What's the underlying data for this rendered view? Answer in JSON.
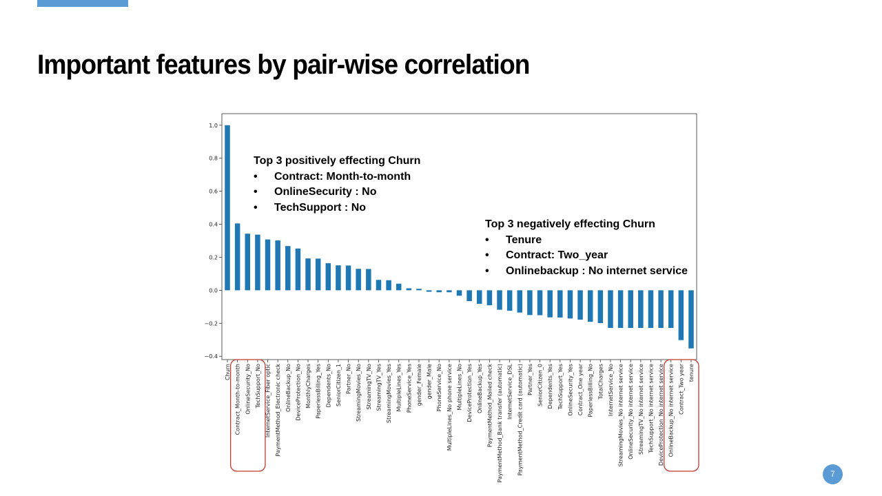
{
  "slide": {
    "title": "Important features by pair-wise correlation",
    "page_number": "7",
    "accent_color": "#5b9bd5"
  },
  "callouts": {
    "positive": {
      "heading": "Top 3 positively effecting Churn",
      "items": [
        "Contract: Month-to-month",
        "OnlineSecurity : No",
        "TechSupport : No"
      ]
    },
    "negative": {
      "heading": "Top 3 negatively effecting Churn",
      "items": [
        "Tenure",
        "Contract: Two_year",
        "Onlinebackup : No internet service"
      ]
    }
  },
  "chart_data": {
    "type": "bar",
    "title": "",
    "xlabel": "",
    "ylabel": "",
    "ylim": [
      -0.42,
      1.07
    ],
    "yticks": [
      -0.4,
      -0.2,
      0.0,
      0.2,
      0.4,
      0.6,
      0.8,
      1.0
    ],
    "grid": false,
    "bar_color": "#1f77b4",
    "highlight_color": "#c0392b",
    "highlight_groups": [
      [
        "Contract_Month-to-month",
        "OnlineSecurity_No",
        "TechSupport_No"
      ],
      [
        "OnlineBackup_No internet service",
        "Contract_Two year",
        "tenure"
      ]
    ],
    "categories": [
      "Churn",
      "Contract_Month-to-month",
      "OnlineSecurity_No",
      "TechSupport_No",
      "InternetService_Fiber optic",
      "PaymentMethod_Electronic check",
      "OnlineBackup_No",
      "DeviceProtection_No",
      "MonthlyCharges",
      "PaperlessBilling_Yes",
      "Dependents_No",
      "SeniorCitizen_1",
      "Partner_No",
      "StreamingMovies_No",
      "StreamingTV_No",
      "StreamingTV_Yes",
      "StreamingMovies_Yes",
      "MultipleLines_Yes",
      "PhoneService_Yes",
      "gender_Female",
      "gender_Male",
      "PhoneService_No",
      "MultipleLines_No phone service",
      "MultipleLines_No",
      "DeviceProtection_Yes",
      "OnlineBackup_Yes",
      "PaymentMethod_Mailed check",
      "PaymentMethod_Bank transfer (automatic)",
      "InternetService_DSL",
      "PaymentMethod_Credit card (automatic)",
      "Partner_Yes",
      "SeniorCitizen_0",
      "Dependents_Yes",
      "TechSupport_Yes",
      "OnlineSecurity_Yes",
      "Contract_One year",
      "PaperlessBilling_No",
      "TotalCharges",
      "InternetService_No",
      "StreamingMovies_No internet service",
      "OnlineSecurity_No internet service",
      "StreamingTV_No internet service",
      "TechSupport_No internet service",
      "DeviceProtection_No internet service",
      "OnlineBackup_No internet service",
      "Contract_Two year",
      "tenure"
    ],
    "values": [
      1.0,
      0.405,
      0.343,
      0.337,
      0.308,
      0.302,
      0.268,
      0.253,
      0.193,
      0.192,
      0.164,
      0.151,
      0.15,
      0.13,
      0.129,
      0.063,
      0.061,
      0.04,
      0.012,
      0.009,
      -0.009,
      -0.012,
      -0.012,
      -0.033,
      -0.066,
      -0.082,
      -0.091,
      -0.118,
      -0.124,
      -0.135,
      -0.15,
      -0.151,
      -0.164,
      -0.165,
      -0.171,
      -0.178,
      -0.191,
      -0.199,
      -0.228,
      -0.228,
      -0.228,
      -0.228,
      -0.228,
      -0.228,
      -0.228,
      -0.302,
      -0.352
    ]
  }
}
